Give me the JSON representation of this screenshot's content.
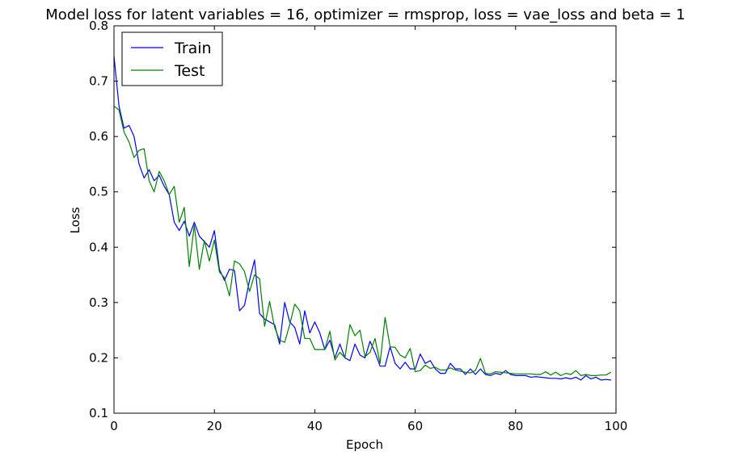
{
  "chart_data": {
    "type": "line",
    "title": "Model loss for latent variables = 16, optimizer = rmsprop, loss = vae_loss and beta = 1",
    "xlabel": "Epoch",
    "ylabel": "Loss",
    "xlim": [
      0,
      100
    ],
    "ylim": [
      0.1,
      0.8
    ],
    "xticks": [
      "0",
      "20",
      "40",
      "60",
      "80",
      "100"
    ],
    "yticks": [
      "0.1",
      "0.2",
      "0.3",
      "0.4",
      "0.5",
      "0.6",
      "0.7",
      "0.8"
    ],
    "grid": false,
    "legend_position": "top-left",
    "series": [
      {
        "name": "Train",
        "color": "#0000ff",
        "values": [
          0.745,
          0.655,
          0.615,
          0.62,
          0.6,
          0.55,
          0.525,
          0.54,
          0.52,
          0.53,
          0.51,
          0.495,
          0.445,
          0.43,
          0.447,
          0.42,
          0.445,
          0.42,
          0.41,
          0.4,
          0.43,
          0.36,
          0.34,
          0.36,
          0.358,
          0.285,
          0.295,
          0.34,
          0.377,
          0.28,
          0.27,
          0.265,
          0.26,
          0.225,
          0.3,
          0.265,
          0.255,
          0.225,
          0.285,
          0.245,
          0.265,
          0.245,
          0.215,
          0.232,
          0.2,
          0.225,
          0.2,
          0.195,
          0.225,
          0.205,
          0.2,
          0.23,
          0.21,
          0.185,
          0.185,
          0.22,
          0.19,
          0.18,
          0.192,
          0.18,
          0.18,
          0.207,
          0.19,
          0.195,
          0.18,
          0.172,
          0.172,
          0.19,
          0.18,
          0.18,
          0.17,
          0.18,
          0.17,
          0.18,
          0.17,
          0.168,
          0.172,
          0.17,
          0.177,
          0.17,
          0.168,
          0.168,
          0.168,
          0.165,
          0.166,
          0.165,
          0.164,
          0.163,
          0.163,
          0.162,
          0.164,
          0.162,
          0.165,
          0.16,
          0.168,
          0.162,
          0.165,
          0.16,
          0.161,
          0.16
        ]
      },
      {
        "name": "Test",
        "color": "#008000",
        "values": [
          0.655,
          0.648,
          0.608,
          0.59,
          0.562,
          0.575,
          0.578,
          0.52,
          0.5,
          0.537,
          0.52,
          0.495,
          0.51,
          0.445,
          0.472,
          0.365,
          0.44,
          0.36,
          0.412,
          0.375,
          0.413,
          0.355,
          0.345,
          0.312,
          0.375,
          0.37,
          0.356,
          0.32,
          0.35,
          0.343,
          0.257,
          0.302,
          0.255,
          0.232,
          0.228,
          0.26,
          0.297,
          0.285,
          0.235,
          0.235,
          0.215,
          0.215,
          0.215,
          0.248,
          0.196,
          0.21,
          0.2,
          0.26,
          0.24,
          0.25,
          0.202,
          0.21,
          0.235,
          0.19,
          0.273,
          0.22,
          0.219,
          0.205,
          0.2,
          0.217,
          0.175,
          0.177,
          0.187,
          0.181,
          0.183,
          0.178,
          0.178,
          0.182,
          0.178,
          0.176,
          0.174,
          0.173,
          0.177,
          0.199,
          0.172,
          0.171,
          0.175,
          0.174,
          0.173,
          0.172,
          0.171,
          0.171,
          0.171,
          0.171,
          0.17,
          0.17,
          0.175,
          0.169,
          0.174,
          0.168,
          0.172,
          0.17,
          0.177,
          0.168,
          0.17,
          0.168,
          0.168,
          0.169,
          0.169,
          0.174
        ]
      }
    ]
  }
}
